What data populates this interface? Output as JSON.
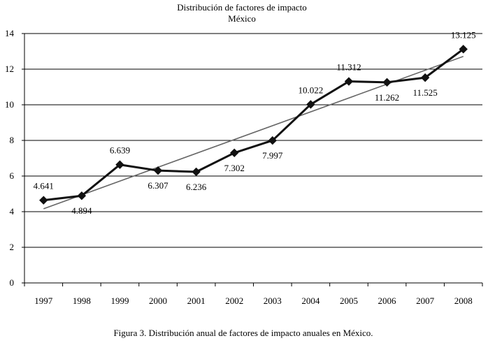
{
  "chart_data": {
    "type": "line",
    "title": "Distribución de factores de impacto",
    "subtitle": "México",
    "caption": "Figura 3. Distribución anual de factores de impacto anuales en México.",
    "categories": [
      "1997",
      "1998",
      "1999",
      "2000",
      "2001",
      "2002",
      "2003",
      "2004",
      "2005",
      "2006",
      "2007",
      "2008"
    ],
    "series": [
      {
        "values": [
          4.641,
          4.894,
          6.639,
          6.307,
          6.236,
          7.302,
          7.997,
          10.022,
          11.312,
          11.262,
          11.525,
          13.125
        ],
        "labels": [
          "4.641",
          "4.894",
          "6.639",
          "6.307",
          "6.236",
          "7.302",
          "7.997",
          "10.022",
          "11.312",
          "11.262",
          "11.525",
          "13.125"
        ],
        "color": "#111111",
        "marker": "diamond"
      }
    ],
    "trendline": {
      "type": "linear",
      "color": "#666666"
    },
    "ylim": [
      0,
      14
    ],
    "yticks": [
      "0",
      "2",
      "4",
      "6",
      "8",
      "10",
      "12",
      "14"
    ],
    "grid": true,
    "legend": "none"
  }
}
